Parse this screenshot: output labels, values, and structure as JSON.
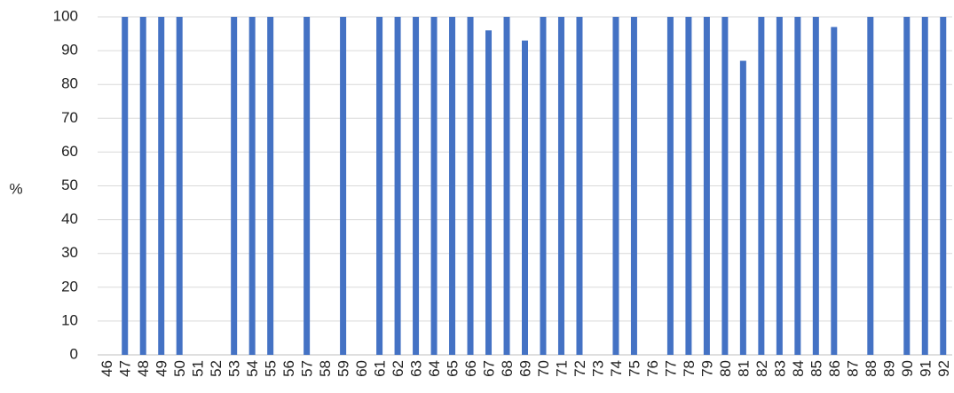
{
  "chart_data": {
    "type": "bar",
    "title": "",
    "xlabel": "",
    "ylabel": "%",
    "ylim": [
      0,
      100
    ],
    "yticks": [
      0,
      10,
      20,
      30,
      40,
      50,
      60,
      70,
      80,
      90,
      100
    ],
    "grid": true,
    "legend": "none",
    "bar_color": "#4472C4",
    "grid_color": "#D9D9D9",
    "categories": [
      "46",
      "47",
      "48",
      "49",
      "50",
      "51",
      "52",
      "53",
      "54",
      "55",
      "56",
      "57",
      "58",
      "59",
      "60",
      "61",
      "62",
      "63",
      "64",
      "65",
      "66",
      "67",
      "68",
      "69",
      "70",
      "71",
      "72",
      "73",
      "74",
      "75",
      "76",
      "77",
      "78",
      "79",
      "80",
      "81",
      "82",
      "83",
      "84",
      "85",
      "86",
      "87",
      "88",
      "89",
      "90",
      "91",
      "92"
    ],
    "values": [
      0,
      100,
      100,
      100,
      100,
      0,
      0,
      100,
      100,
      100,
      0,
      100,
      0,
      100,
      0,
      100,
      100,
      100,
      100,
      100,
      100,
      96,
      100,
      93,
      100,
      100,
      100,
      0,
      100,
      100,
      0,
      100,
      100,
      100,
      100,
      87,
      100,
      100,
      100,
      100,
      97,
      0,
      100,
      0,
      100,
      100,
      100
    ]
  }
}
